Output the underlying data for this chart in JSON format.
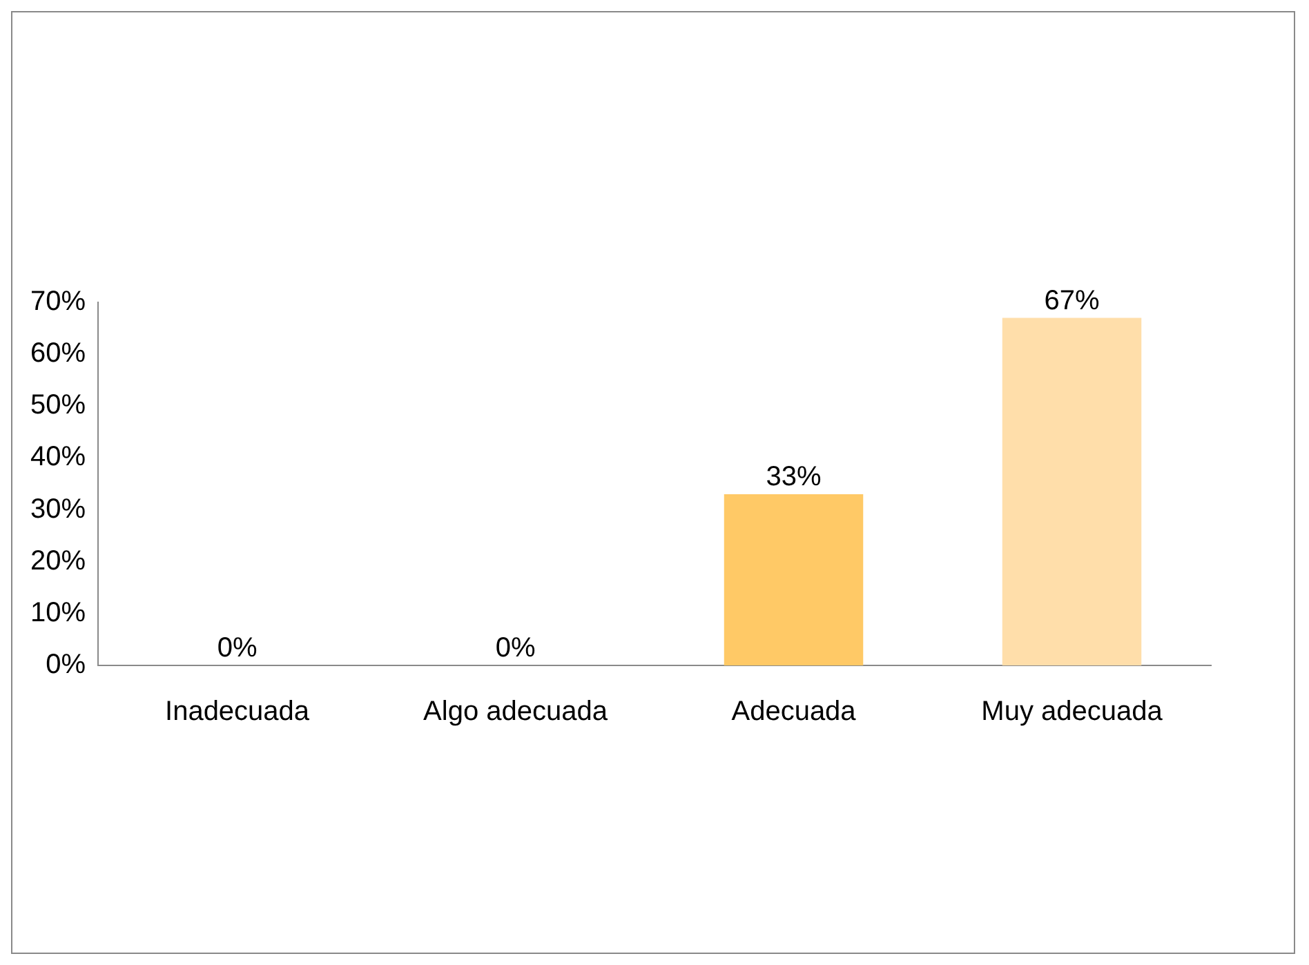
{
  "chart_data": {
    "type": "bar",
    "categories": [
      "Inadecuada",
      "Algo adecuada",
      "Adecuada",
      "Muy adecuada"
    ],
    "values": [
      0,
      0,
      33,
      67
    ],
    "colors": [
      "#9c7400",
      "#bf9000",
      "#ffc966",
      "#ffdeaa"
    ],
    "value_labels": [
      "0%",
      "0%",
      "33%",
      "67%"
    ],
    "ylim": [
      0,
      70
    ],
    "yticks": [
      {
        "value": 0,
        "label": "0%"
      },
      {
        "value": 10,
        "label": "10%"
      },
      {
        "value": 20,
        "label": "20%"
      },
      {
        "value": 30,
        "label": "30%"
      },
      {
        "value": 40,
        "label": "40%"
      },
      {
        "value": 50,
        "label": "50%"
      },
      {
        "value": 60,
        "label": "60%"
      },
      {
        "value": 70,
        "label": "70%"
      }
    ],
    "grid": false,
    "legend": false
  }
}
